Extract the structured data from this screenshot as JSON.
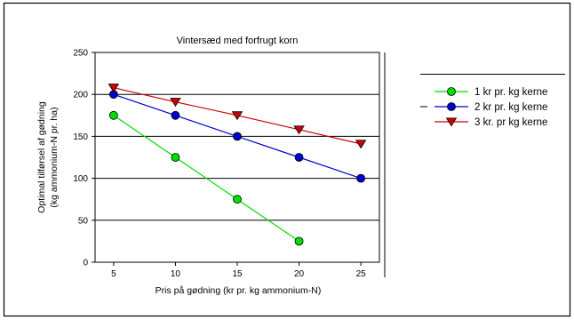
{
  "chart_data": {
    "type": "line",
    "title": "Vintersæd med forfrugt korn",
    "xlabel": "Pris på gødning (kr pr. kg ammonium-N)",
    "ylabel_line1": "Optimal tilførsel af gødning",
    "ylabel_line2": "(kg ammonium-N pr. ha)",
    "xlim": [
      3.5,
      26.5
    ],
    "ylim": [
      0,
      250
    ],
    "x_ticks": [
      5,
      10,
      15,
      20,
      25
    ],
    "y_ticks": [
      0,
      50,
      100,
      150,
      200,
      250
    ],
    "grid": "horizontal",
    "legend_position": "right",
    "series": [
      {
        "name": "1 kr pr. kg kerne",
        "color": "#00dd00",
        "marker": "circle",
        "x": [
          5,
          10,
          15,
          20
        ],
        "values": [
          175,
          125,
          75,
          25
        ]
      },
      {
        "name": "2 kr pr. kg kerne",
        "color": "#0000cc",
        "marker": "circle",
        "x": [
          5,
          10,
          15,
          20,
          25
        ],
        "values": [
          200,
          175,
          150,
          125,
          100
        ]
      },
      {
        "name": "3 kr. pr kg kerne",
        "color": "#cc0000",
        "marker": "triangle-down",
        "x": [
          5,
          10,
          15,
          20,
          25
        ],
        "values": [
          208,
          191,
          175,
          158,
          141
        ]
      }
    ]
  }
}
